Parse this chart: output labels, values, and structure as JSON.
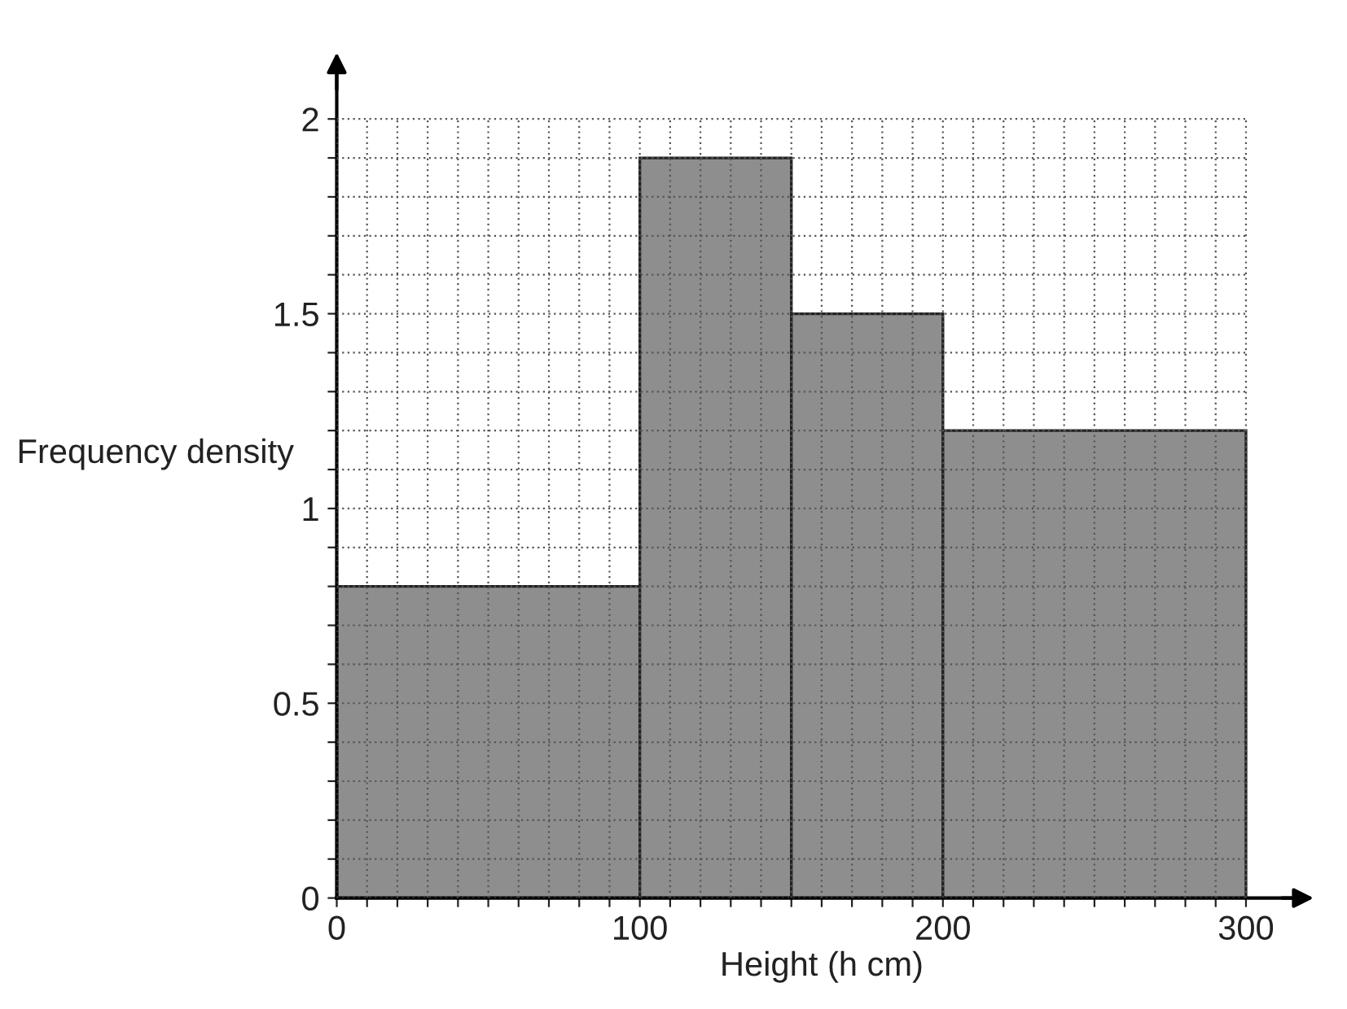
{
  "chart_data": {
    "type": "histogram",
    "xlabel": "Height (h cm)",
    "ylabel": "Frequency density",
    "bins": [
      0,
      100,
      150,
      200,
      300
    ],
    "values": [
      0.8,
      1.9,
      1.5,
      1.2
    ],
    "color": "#8e8e8e",
    "xlim": [
      0,
      320
    ],
    "ylim": [
      0,
      2.15
    ],
    "xticks": [
      0,
      {
        "value": 10,
        "label": null
      },
      {
        "value": 20,
        "label": null
      },
      {
        "value": 30,
        "label": null
      },
      {
        "value": 40,
        "label": null
      },
      {
        "value": 50,
        "label": null
      },
      {
        "value": 60,
        "label": null
      },
      {
        "value": 70,
        "label": null
      },
      {
        "value": 80,
        "label": null
      },
      {
        "value": 90,
        "label": null
      },
      100,
      {
        "value": 110,
        "label": null
      },
      {
        "value": 120,
        "label": null
      },
      {
        "value": 130,
        "label": null
      },
      {
        "value": 140,
        "label": null
      },
      {
        "value": 150,
        "label": null
      },
      {
        "value": 160,
        "label": null
      },
      {
        "value": 170,
        "label": null
      },
      {
        "value": 180,
        "label": null
      },
      {
        "value": 190,
        "label": null
      },
      200,
      {
        "value": 210,
        "label": null
      },
      {
        "value": 220,
        "label": null
      },
      {
        "value": 230,
        "label": null
      },
      {
        "value": 240,
        "label": null
      },
      {
        "value": 250,
        "label": null
      },
      {
        "value": 260,
        "label": null
      },
      {
        "value": 270,
        "label": null
      },
      {
        "value": 280,
        "label": null
      },
      {
        "value": 290,
        "label": null
      },
      300
    ],
    "yticks": [
      0,
      {
        "value": 0.1,
        "label": null
      },
      {
        "value": 0.2,
        "label": null
      },
      {
        "value": 0.3,
        "label": null
      },
      {
        "value": 0.4,
        "label": null
      },
      0.5,
      {
        "value": 0.6,
        "label": null
      },
      {
        "value": 0.7,
        "label": null
      },
      {
        "value": 0.8,
        "label": null
      },
      {
        "value": 0.9,
        "label": null
      },
      1,
      {
        "value": 1.1,
        "label": null
      },
      {
        "value": 1.2,
        "label": null
      },
      {
        "value": 1.3,
        "label": null
      },
      {
        "value": 1.4,
        "label": null
      },
      1.5,
      {
        "value": 1.6,
        "label": null
      },
      {
        "value": 1.7,
        "label": null
      },
      {
        "value": 1.8,
        "label": null
      },
      {
        "value": 1.9,
        "label": null
      },
      2
    ],
    "grid": true
  }
}
